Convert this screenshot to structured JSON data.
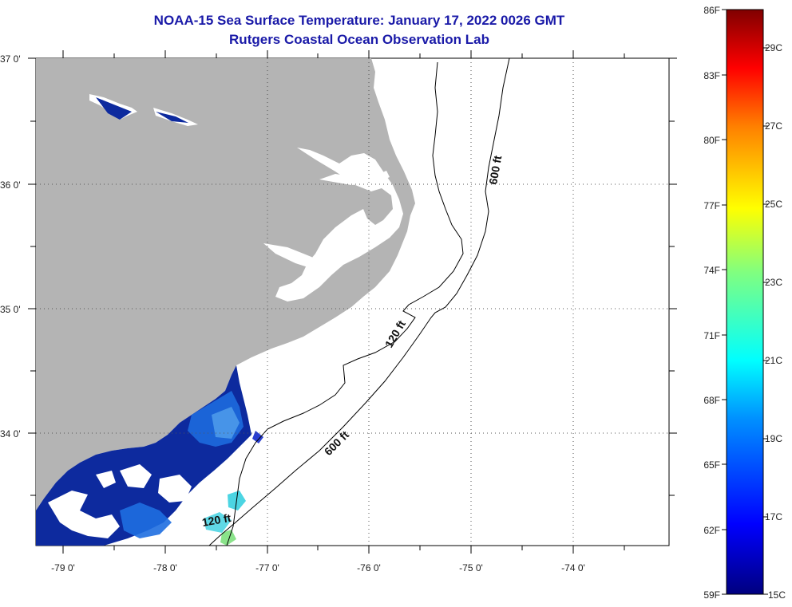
{
  "title": {
    "line1": "NOAA-15 Sea Surface Temperature:  January 17, 2022 0026 GMT",
    "line2": "Rutgers Coastal Ocean Observation Lab"
  },
  "axes": {
    "lat_labels": [
      "37 0'",
      "36 0'",
      "35 0'",
      "34 0'"
    ],
    "lon_labels": [
      "-79 0'",
      "-78 0'",
      "-77 0'",
      "-76 0'",
      "-75 0'",
      "-74 0'"
    ]
  },
  "contours": {
    "label_600_north": "600 ft",
    "label_120_mid": "120 ft",
    "label_600_south": "600 ft",
    "label_120_south": "120 ft"
  },
  "colorbar": {
    "fahrenheit": [
      "86F",
      "83F",
      "80F",
      "77F",
      "74F",
      "71F",
      "68F",
      "65F",
      "62F",
      "59F"
    ],
    "celsius": [
      "29C",
      "27C",
      "25C",
      "23C",
      "21C",
      "19C",
      "17C",
      "15C"
    ],
    "min_f": 59,
    "max_f": 86
  },
  "colors": {
    "title": "#1a1aa8",
    "land": "#b4b4b4",
    "cold_water": "#0d2a9e",
    "mid_water": "#1e6ee0",
    "warm_water": "#38d0e0"
  }
}
